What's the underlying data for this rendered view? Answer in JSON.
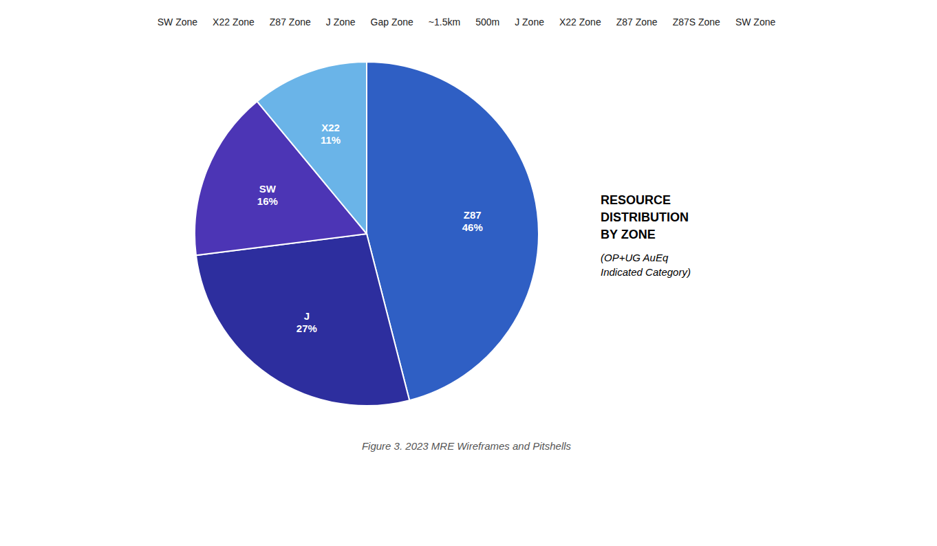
{
  "chart_data": {
    "type": "pie",
    "title": "Figure 3. 2023 MRE Wireframes and Pitshells",
    "labels": [
      "Z87",
      "J",
      "SW",
      "X22"
    ],
    "values": [
      46,
      27,
      16,
      11
    ],
    "value_labels": [
      "46%",
      "27%",
      "16%",
      "11%"
    ],
    "colors": [
      "#2f5fc4",
      "#2d2e9e",
      "#4c35b5",
      "#6ab4e8"
    ],
    "data_labels": true,
    "subtitle": [
      "RESOURCE",
      "DISTRIBUTION",
      "BY ZONE",
      "(OP+UG AuEq",
      "Indicated Category)"
    ],
    "annotations": [
      "SW Zone",
      "X22 Zone",
      "Z87 Zone",
      "J Zone",
      "Gap Zone",
      "~1.5km",
      "500m",
      "J Zone",
      "X22 Zone",
      "Z87 Zone",
      "Z87S Zone",
      "SW Zone"
    ]
  }
}
